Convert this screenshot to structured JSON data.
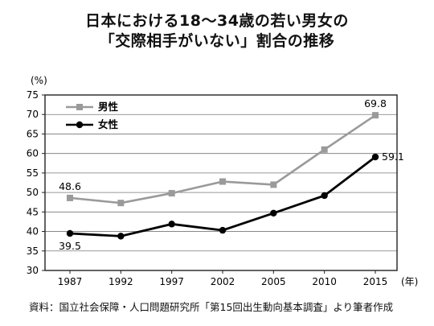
{
  "title_line1": "日本における18〜34歳の若い男女の",
  "title_line2": "「交際相手がいない」割合の推移",
  "source": "資料：国立社会保障・人口問題研究所「第15回出生動向基本調査」より筆者作成",
  "chart_data": {
    "type": "line",
    "x": [
      "1987",
      "1992",
      "1997",
      "2002",
      "2005",
      "2010",
      "2015"
    ],
    "ylabel": "(%)",
    "xlabel": "(年)",
    "ylim": [
      30,
      75
    ],
    "yticks": [
      "75",
      "70",
      "65",
      "60",
      "55",
      "50",
      "45",
      "40",
      "35",
      "30"
    ],
    "grid": true,
    "legend": "top-left",
    "series": [
      {
        "name": "男性",
        "values": [
          48.6,
          47.3,
          49.8,
          52.8,
          52.0,
          61.0,
          69.8
        ],
        "color": "#9a9a9a",
        "marker": "square"
      },
      {
        "name": "女性",
        "values": [
          39.5,
          38.8,
          41.9,
          40.3,
          44.7,
          49.2,
          59.1
        ],
        "color": "#000000",
        "marker": "circle"
      }
    ],
    "data_labels": [
      {
        "series": 0,
        "index": 0,
        "text": "48.6"
      },
      {
        "series": 0,
        "index": 6,
        "text": "69.8"
      },
      {
        "series": 1,
        "index": 0,
        "text": "39.5"
      },
      {
        "series": 1,
        "index": 6,
        "text": "59.1"
      }
    ]
  }
}
